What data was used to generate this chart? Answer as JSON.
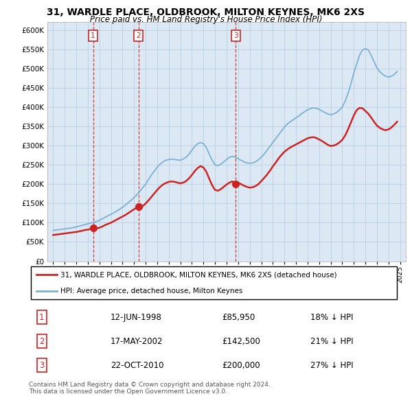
{
  "title": "31, WARDLE PLACE, OLDBROOK, MILTON KEYNES, MK6 2XS",
  "subtitle": "Price paid vs. HM Land Registry's House Price Index (HPI)",
  "legend_line1": "31, WARDLE PLACE, OLDBROOK, MILTON KEYNES, MK6 2XS (detached house)",
  "legend_line2": "HPI: Average price, detached house, Milton Keynes",
  "sales": [
    {
      "label": "1",
      "date": "12-JUN-1998",
      "price": 85950,
      "x": 1998.45
    },
    {
      "label": "2",
      "date": "17-MAY-2002",
      "price": 142500,
      "x": 2002.37
    },
    {
      "label": "3",
      "date": "22-OCT-2010",
      "price": 200000,
      "x": 2010.8
    }
  ],
  "sale_annotations": [
    {
      "num": "1",
      "date": "12-JUN-1998",
      "price": "£85,950",
      "note": "18% ↓ HPI"
    },
    {
      "num": "2",
      "date": "17-MAY-2002",
      "price": "£142,500",
      "note": "21% ↓ HPI"
    },
    {
      "num": "3",
      "date": "22-OCT-2010",
      "price": "£200,000",
      "note": "27% ↓ HPI"
    }
  ],
  "hpi_years": [
    1995.0,
    1995.25,
    1995.5,
    1995.75,
    1996.0,
    1996.25,
    1996.5,
    1996.75,
    1997.0,
    1997.25,
    1997.5,
    1997.75,
    1998.0,
    1998.25,
    1998.5,
    1998.75,
    1999.0,
    1999.25,
    1999.5,
    1999.75,
    2000.0,
    2000.25,
    2000.5,
    2000.75,
    2001.0,
    2001.25,
    2001.5,
    2001.75,
    2002.0,
    2002.25,
    2002.5,
    2002.75,
    2003.0,
    2003.25,
    2003.5,
    2003.75,
    2004.0,
    2004.25,
    2004.5,
    2004.75,
    2005.0,
    2005.25,
    2005.5,
    2005.75,
    2006.0,
    2006.25,
    2006.5,
    2006.75,
    2007.0,
    2007.25,
    2007.5,
    2007.75,
    2008.0,
    2008.25,
    2008.5,
    2008.75,
    2009.0,
    2009.25,
    2009.5,
    2009.75,
    2010.0,
    2010.25,
    2010.5,
    2010.75,
    2011.0,
    2011.25,
    2011.5,
    2011.75,
    2012.0,
    2012.25,
    2012.5,
    2012.75,
    2013.0,
    2013.25,
    2013.5,
    2013.75,
    2014.0,
    2014.25,
    2014.5,
    2014.75,
    2015.0,
    2015.25,
    2015.5,
    2015.75,
    2016.0,
    2016.25,
    2016.5,
    2016.75,
    2017.0,
    2017.25,
    2017.5,
    2017.75,
    2018.0,
    2018.25,
    2018.5,
    2018.75,
    2019.0,
    2019.25,
    2019.5,
    2019.75,
    2020.0,
    2020.25,
    2020.5,
    2020.75,
    2021.0,
    2021.25,
    2021.5,
    2021.75,
    2022.0,
    2022.25,
    2022.5,
    2022.75,
    2023.0,
    2023.25,
    2023.5,
    2023.75,
    2024.0,
    2024.25,
    2024.5,
    2024.75
  ],
  "hpi_values": [
    80000,
    81000,
    82000,
    83000,
    84000,
    85000,
    86000,
    87500,
    89000,
    91000,
    93000,
    95000,
    97000,
    99000,
    101000,
    103000,
    106000,
    110000,
    114000,
    118000,
    122000,
    126000,
    130000,
    135000,
    140000,
    146000,
    152000,
    158000,
    165000,
    173000,
    182000,
    191000,
    200000,
    212000,
    224000,
    234000,
    244000,
    252000,
    258000,
    262000,
    264000,
    265000,
    264000,
    263000,
    262000,
    265000,
    270000,
    278000,
    288000,
    298000,
    305000,
    308000,
    305000,
    295000,
    278000,
    262000,
    250000,
    248000,
    252000,
    258000,
    264000,
    270000,
    272000,
    270000,
    266000,
    262000,
    258000,
    255000,
    254000,
    255000,
    258000,
    263000,
    270000,
    278000,
    288000,
    298000,
    308000,
    318000,
    328000,
    338000,
    348000,
    356000,
    362000,
    367000,
    372000,
    377000,
    383000,
    388000,
    393000,
    396000,
    398000,
    397000,
    394000,
    390000,
    386000,
    382000,
    380000,
    382000,
    386000,
    392000,
    400000,
    415000,
    435000,
    460000,
    488000,
    512000,
    535000,
    548000,
    552000,
    548000,
    535000,
    518000,
    502000,
    492000,
    485000,
    480000,
    478000,
    480000,
    485000,
    492000
  ],
  "red_years": [
    1995.0,
    1995.25,
    1995.5,
    1995.75,
    1996.0,
    1996.25,
    1996.5,
    1996.75,
    1997.0,
    1997.25,
    1997.5,
    1997.75,
    1998.0,
    1998.25,
    1998.45,
    1998.5,
    1998.75,
    1999.0,
    1999.25,
    1999.5,
    1999.75,
    2000.0,
    2000.25,
    2000.5,
    2000.75,
    2001.0,
    2001.25,
    2001.5,
    2001.75,
    2002.0,
    2002.25,
    2002.37,
    2002.5,
    2002.75,
    2003.0,
    2003.25,
    2003.5,
    2003.75,
    2004.0,
    2004.25,
    2004.5,
    2004.75,
    2005.0,
    2005.25,
    2005.5,
    2005.75,
    2006.0,
    2006.25,
    2006.5,
    2006.75,
    2007.0,
    2007.25,
    2007.5,
    2007.75,
    2008.0,
    2008.25,
    2008.5,
    2008.75,
    2009.0,
    2009.25,
    2009.5,
    2009.75,
    2010.0,
    2010.25,
    2010.5,
    2010.75,
    2010.8,
    2011.0,
    2011.25,
    2011.5,
    2011.75,
    2012.0,
    2012.25,
    2012.5,
    2012.75,
    2013.0,
    2013.25,
    2013.5,
    2013.75,
    2014.0,
    2014.25,
    2014.5,
    2014.75,
    2015.0,
    2015.25,
    2015.5,
    2015.75,
    2016.0,
    2016.25,
    2016.5,
    2016.75,
    2017.0,
    2017.25,
    2017.5,
    2017.75,
    2018.0,
    2018.25,
    2018.5,
    2018.75,
    2019.0,
    2019.25,
    2019.5,
    2019.75,
    2020.0,
    2020.25,
    2020.5,
    2020.75,
    2021.0,
    2021.25,
    2021.5,
    2021.75,
    2022.0,
    2022.25,
    2022.5,
    2022.75,
    2023.0,
    2023.25,
    2023.5,
    2023.75,
    2024.0,
    2024.25,
    2024.5,
    2024.75
  ],
  "red_values": [
    68000,
    69000,
    70000,
    71000,
    72000,
    73000,
    74000,
    75000,
    76000,
    77500,
    79000,
    81000,
    82000,
    84000,
    85950,
    84500,
    85000,
    87000,
    90000,
    94000,
    97000,
    100000,
    104000,
    108000,
    112000,
    116000,
    120000,
    125000,
    130000,
    135000,
    139000,
    142500,
    141000,
    143000,
    150000,
    158000,
    167000,
    176000,
    185000,
    193000,
    199000,
    203000,
    206000,
    207000,
    206000,
    204000,
    202000,
    204000,
    208000,
    215000,
    224000,
    234000,
    242000,
    247000,
    243000,
    232000,
    214000,
    197000,
    185000,
    183000,
    187000,
    193000,
    199000,
    204000,
    207000,
    202000,
    200000,
    204000,
    200000,
    196000,
    193000,
    191000,
    192000,
    195000,
    200000,
    208000,
    216000,
    225000,
    235000,
    246000,
    256000,
    267000,
    276000,
    284000,
    290000,
    295000,
    299000,
    303000,
    307000,
    311000,
    315000,
    319000,
    321000,
    322000,
    320000,
    316000,
    312000,
    307000,
    302000,
    299000,
    300000,
    303000,
    308000,
    315000,
    326000,
    342000,
    360000,
    378000,
    392000,
    398000,
    397000,
    390000,
    383000,
    373000,
    362000,
    352000,
    346000,
    342000,
    340000,
    342000,
    347000,
    354000,
    362000
  ],
  "xlim": [
    1994.5,
    2025.5
  ],
  "ylim": [
    0,
    620000
  ],
  "yticks": [
    0,
    50000,
    100000,
    150000,
    200000,
    250000,
    300000,
    350000,
    400000,
    450000,
    500000,
    550000,
    600000
  ],
  "xticks": [
    1995,
    1996,
    1997,
    1998,
    1999,
    2000,
    2001,
    2002,
    2003,
    2004,
    2005,
    2006,
    2007,
    2008,
    2009,
    2010,
    2011,
    2012,
    2013,
    2014,
    2015,
    2016,
    2017,
    2018,
    2019,
    2020,
    2021,
    2022,
    2023,
    2024,
    2025
  ],
  "hpi_color": "#7ab0d4",
  "red_color": "#cc2222",
  "bg_color": "#dce9f5",
  "grid_color": "#b8cfe0",
  "box_edge_color": "#cc2222",
  "footer_text": "Contains HM Land Registry data © Crown copyright and database right 2024.\nThis data is licensed under the Open Government Licence v3.0."
}
